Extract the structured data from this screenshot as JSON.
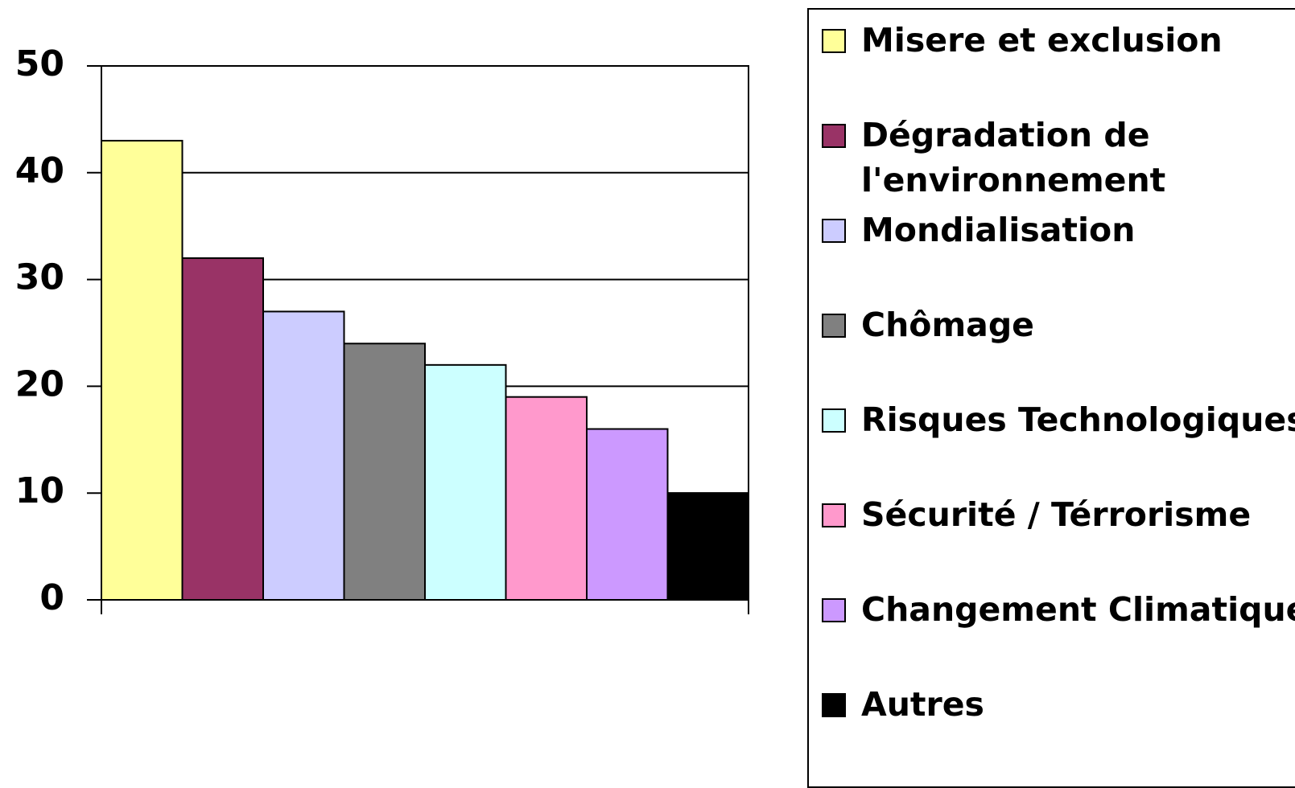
{
  "chart_data": {
    "type": "bar",
    "series": [
      {
        "name": "Misere et exclusion",
        "color": "#ffff99",
        "values": [
          43
        ]
      },
      {
        "name": "Dégradation de l'environnement",
        "color": "#993366",
        "values": [
          32
        ]
      },
      {
        "name": "Mondialisation",
        "color": "#ccccff",
        "values": [
          27
        ]
      },
      {
        "name": "Chômage",
        "color": "#808080",
        "values": [
          24
        ]
      },
      {
        "name": "Risques Technologiques",
        "color": "#ccffff",
        "values": [
          22
        ]
      },
      {
        "name": "Sécurité / Térrorisme",
        "color": "#ff99cc",
        "values": [
          19
        ]
      },
      {
        "name": "Changement Climatique",
        "color": "#cc99ff",
        "values": [
          16
        ]
      },
      {
        "name": "Autres",
        "color": "#000000",
        "values": [
          10
        ]
      }
    ],
    "ylim": [
      0,
      50
    ],
    "yticks": [
      0,
      10,
      20,
      30,
      40,
      50
    ],
    "grid": true,
    "legend": "right"
  }
}
